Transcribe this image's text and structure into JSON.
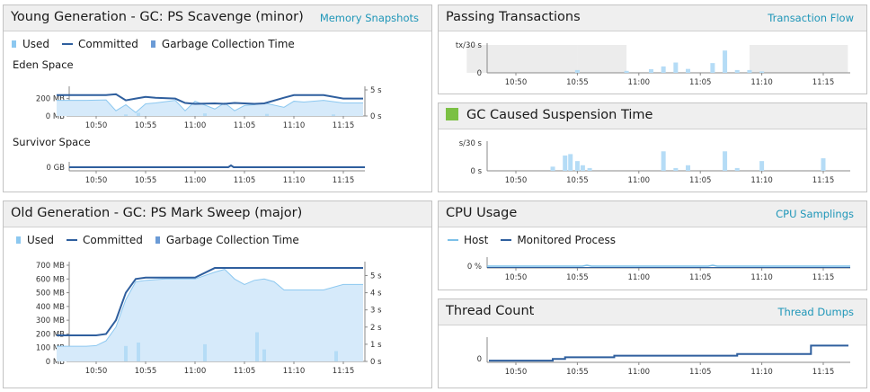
{
  "colors": {
    "used_fill": "#d6eafa",
    "used_line": "#8cc8f0",
    "committed": "#2f5f9e",
    "gc_bar": "#b5dcf6",
    "grey": "#ececec",
    "host": "#7cc0e8",
    "process": "#2f5f9e",
    "accent": "#1e96b8",
    "gc_icon": "#7bc043"
  },
  "panels": {
    "young": {
      "title": "Young Generation - GC: PS Scavenge (minor)",
      "link": "Memory Snapshots",
      "legend": {
        "used": "Used",
        "committed": "Committed",
        "gc_time": "Garbage Collection Time"
      },
      "eden_label": "Eden Space",
      "survivor_label": "Survivor Space"
    },
    "old": {
      "title": "Old Generation - GC: PS Mark Sweep (major)",
      "legend": {
        "used": "Used",
        "committed": "Committed",
        "gc_time": "Garbage Collection Time"
      }
    },
    "transactions": {
      "title": "Passing Transactions",
      "link": "Transaction Flow"
    },
    "gc_suspension": {
      "title": "GC Caused Suspension Time",
      "icon": "gc-suspension-icon"
    },
    "cpu": {
      "title": "CPU Usage",
      "link": "CPU Samplings",
      "legend": {
        "host": "Host",
        "process": "Monitored Process"
      }
    },
    "threads": {
      "title": "Thread Count",
      "link": "Thread Dumps"
    }
  },
  "chart_data": [
    {
      "id": "eden",
      "type": "area",
      "title": "Eden Space",
      "x": [
        "10:46",
        "10:49",
        "10:51",
        "10:52",
        "10:53",
        "10:54",
        "10:55",
        "10:56",
        "10:58",
        "10:59",
        "11:00",
        "11:02",
        "11:03",
        "11:04",
        "11:05",
        "11:06",
        "11:07",
        "11:09",
        "11:10",
        "11:11",
        "11:13",
        "11:15",
        "11:17"
      ],
      "y_ticks_left": [
        "0 MB",
        "200 MB"
      ],
      "y_ticks_right": [
        "0 s",
        "5 s"
      ],
      "x_ticks": [
        "10:50",
        "10:55",
        "11:00",
        "11:05",
        "11:10",
        "11:15"
      ],
      "series": [
        {
          "name": "Committed",
          "unit": "MB",
          "values": [
            240,
            240,
            240,
            250,
            180,
            200,
            220,
            210,
            200,
            150,
            140,
            145,
            140,
            150,
            145,
            140,
            145,
            210,
            240,
            240,
            240,
            200,
            200
          ]
        },
        {
          "name": "Used",
          "unit": "MB",
          "values": [
            180,
            180,
            185,
            60,
            130,
            40,
            140,
            150,
            180,
            60,
            170,
            80,
            150,
            60,
            120,
            130,
            150,
            100,
            170,
            160,
            180,
            150,
            150
          ]
        },
        {
          "name": "Garbage Collection Time",
          "unit": "s",
          "x": [
            "10:53",
            "10:54",
            "11:01",
            "11:07",
            "11:14"
          ],
          "values": [
            0.3,
            0.6,
            0.5,
            0.4,
            0.3
          ]
        }
      ],
      "ylim": [
        0,
        300
      ]
    },
    {
      "id": "survivor",
      "type": "line",
      "title": "Survivor Space",
      "x": [
        "10:46",
        "11:17"
      ],
      "y_ticks_left": [
        "0 GB"
      ],
      "x_ticks": [
        "10:50",
        "10:55",
        "11:00",
        "11:05",
        "11:10",
        "11:15"
      ],
      "series": [
        {
          "name": "Committed",
          "unit": "GB",
          "values": [
            0,
            0
          ]
        }
      ],
      "ylim": [
        0,
        1
      ]
    },
    {
      "id": "old",
      "type": "area",
      "x": [
        "10:46",
        "10:49",
        "10:50",
        "10:51",
        "10:52",
        "10:53",
        "10:54",
        "10:55",
        "10:57",
        "11:00",
        "11:02",
        "11:03",
        "11:04",
        "11:05",
        "11:06",
        "11:07",
        "11:08",
        "11:09",
        "11:10",
        "11:13",
        "11:15",
        "11:17"
      ],
      "y_ticks_left": [
        "0 MB",
        "100 MB",
        "200 MB",
        "300 MB",
        "400 MB",
        "500 MB",
        "600 MB",
        "700 MB"
      ],
      "y_ticks_right": [
        "0 s",
        "1 s",
        "2 s",
        "3 s",
        "4 s",
        "5 s"
      ],
      "x_ticks": [
        "10:50",
        "10:55",
        "11:00",
        "11:05",
        "11:10",
        "11:15"
      ],
      "series": [
        {
          "name": "Committed",
          "unit": "MB",
          "values": [
            190,
            190,
            190,
            200,
            300,
            500,
            600,
            610,
            610,
            610,
            680,
            680,
            680,
            680,
            680,
            680,
            680,
            680,
            680,
            680,
            680,
            680
          ]
        },
        {
          "name": "Used",
          "unit": "MB",
          "values": [
            110,
            110,
            115,
            150,
            250,
            450,
            580,
            590,
            600,
            600,
            650,
            670,
            600,
            560,
            590,
            600,
            580,
            520,
            520,
            520,
            560,
            560
          ]
        },
        {
          "name": "Garbage Collection Time",
          "unit": "s",
          "x": [
            "10:53",
            "10:54",
            "11:01",
            "11:06",
            "11:07",
            "11:14"
          ],
          "values": [
            0.9,
            1.1,
            1.0,
            1.7,
            0.7,
            0.6
          ]
        }
      ],
      "ylim": [
        0,
        700
      ]
    },
    {
      "id": "transactions",
      "type": "bar",
      "y_ticks_left": [
        "0",
        "tx/30 s"
      ],
      "x_ticks": [
        "10:50",
        "10:55",
        "11:00",
        "11:05",
        "11:10",
        "11:15"
      ],
      "series": [
        {
          "name": "Passing Transactions",
          "unit": "tx/30 s",
          "x": [
            "10:55",
            "10:59",
            "11:01",
            "11:02",
            "11:03",
            "11:04",
            "11:06",
            "11:07",
            "11:08",
            "11:09",
            "11:10"
          ],
          "values": [
            0.1,
            0.07,
            0.13,
            0.23,
            0.37,
            0.14,
            0.35,
            0.8,
            0.1,
            0.1,
            0.05
          ]
        }
      ],
      "ylim": [
        0,
        1
      ]
    },
    {
      "id": "gc_suspension",
      "type": "bar",
      "y_ticks_left": [
        "0 s",
        "s/30 s"
      ],
      "x_ticks": [
        "10:50",
        "10:55",
        "11:00",
        "11:05",
        "11:10",
        "11:15"
      ],
      "series": [
        {
          "name": "GC Caused Suspension Time",
          "unit": "s/30 s",
          "x": [
            "10:53",
            "10:54",
            "10:54",
            "10:55",
            "10:55",
            "10:56",
            "11:02",
            "11:03",
            "11:04",
            "11:07",
            "11:08",
            "11:10",
            "11:15"
          ],
          "values": [
            0.15,
            0.55,
            0.6,
            0.35,
            0.2,
            0.1,
            0.7,
            0.1,
            0.2,
            0.7,
            0.1,
            0.35,
            0.45
          ]
        }
      ],
      "ylim": [
        0,
        1
      ]
    },
    {
      "id": "cpu",
      "type": "line",
      "y_ticks_left": [
        "0 %"
      ],
      "x_ticks": [
        "10:50",
        "10:55",
        "11:00",
        "11:05",
        "11:10",
        "11:15"
      ],
      "series": [
        {
          "name": "Host",
          "unit": "%",
          "x": [
            "10:46",
            "11:17"
          ],
          "values": [
            0.5,
            0.5
          ]
        },
        {
          "name": "Monitored Process",
          "unit": "%",
          "x": [
            "10:46",
            "11:17"
          ],
          "values": [
            0,
            0
          ]
        }
      ],
      "ylim": [
        0,
        10
      ]
    },
    {
      "id": "threads",
      "type": "line",
      "y_ticks_left": [
        "0"
      ],
      "x_ticks": [
        "10:50",
        "10:55",
        "11:00",
        "11:05",
        "11:10",
        "11:15"
      ],
      "series": [
        {
          "name": "Thread Count",
          "x": [
            "10:46",
            "10:52",
            "10:53",
            "10:54",
            "10:58",
            "11:06",
            "11:08",
            "11:10",
            "11:14",
            "11:14",
            "11:17"
          ],
          "values": [
            1,
            1,
            2,
            3,
            4,
            4,
            5,
            5,
            5,
            10,
            10
          ]
        }
      ],
      "ylim": [
        0,
        14
      ]
    }
  ]
}
